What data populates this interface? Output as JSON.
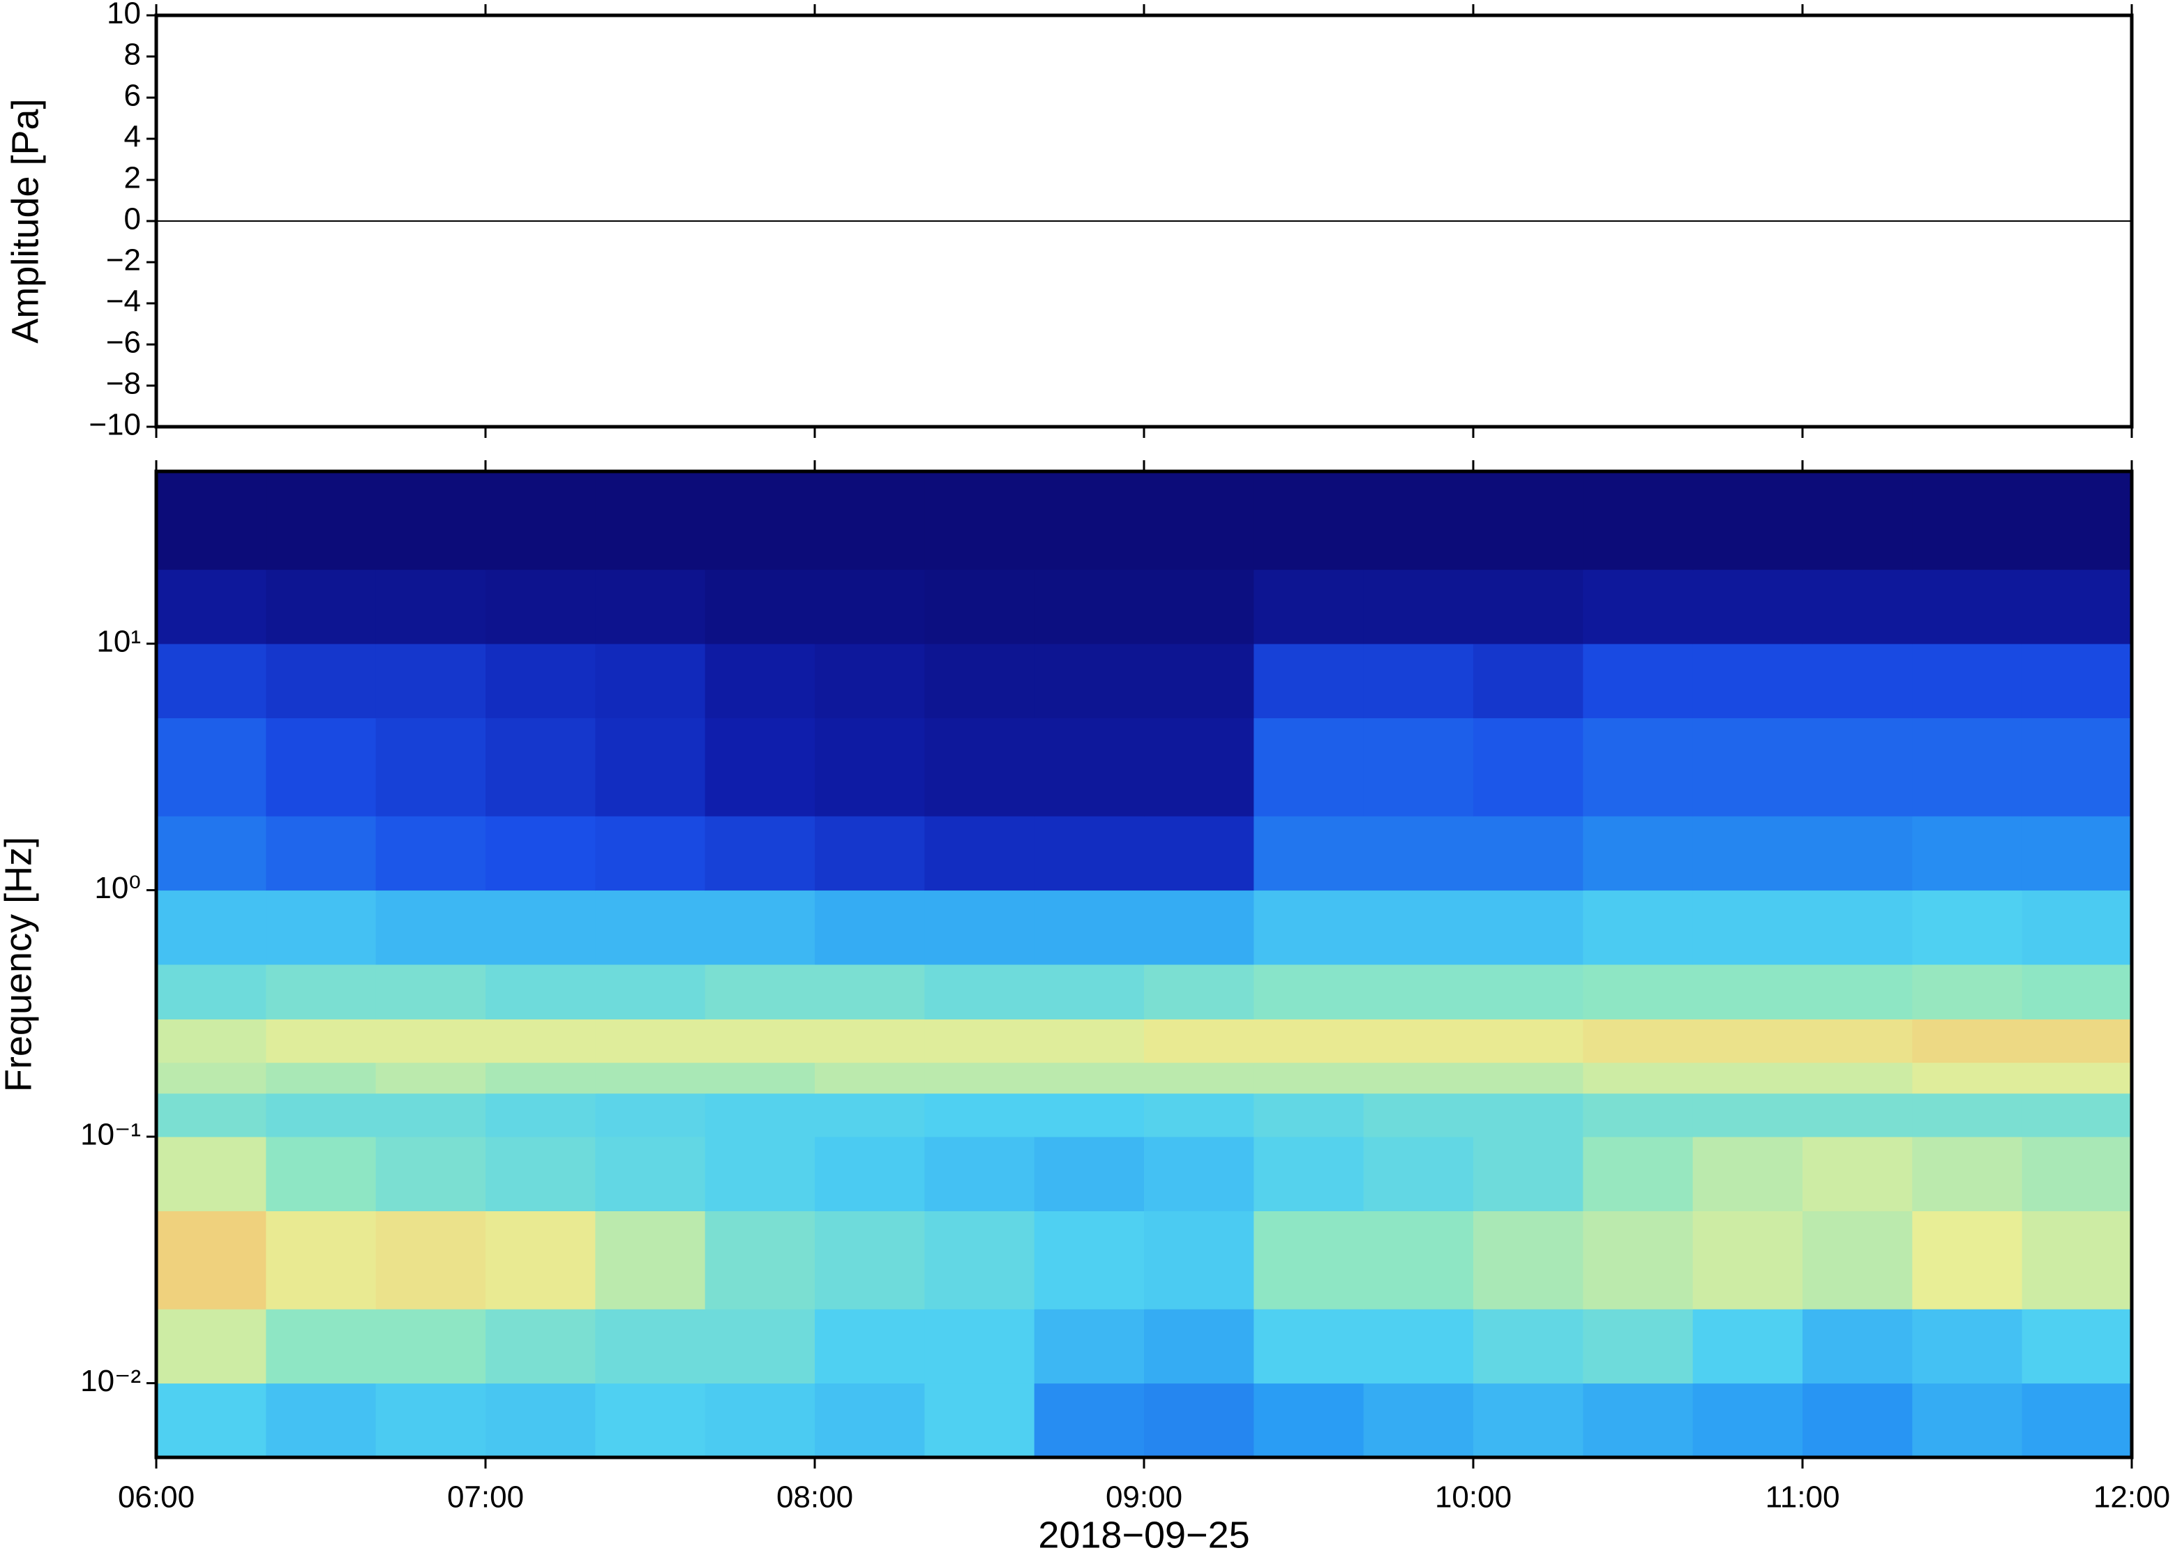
{
  "chart_data": [
    {
      "type": "line",
      "ylabel": "Amplitude [Pa]",
      "x": [
        360,
        420,
        480,
        540,
        600,
        660,
        720
      ],
      "series": [
        {
          "color": "#000000",
          "values": [
            0,
            0,
            0,
            0,
            0,
            0,
            0
          ]
        }
      ],
      "xlim": [
        360,
        720
      ],
      "xticks": [
        360,
        420,
        480,
        540,
        600,
        660,
        720
      ],
      "ylim": [
        -10,
        10
      ],
      "yticks": [
        {
          "value": -10,
          "label": "−10"
        },
        {
          "value": -8,
          "label": "−8"
        },
        {
          "value": -6,
          "label": "−6"
        },
        {
          "value": -4,
          "label": "−4"
        },
        {
          "value": -2,
          "label": "−2"
        },
        0,
        2,
        4,
        6,
        8,
        10
      ]
    },
    {
      "type": "heatmap",
      "ylabel": "Frequency [Hz]",
      "xlabel": "2018−09−25",
      "log_y": true,
      "xlim": [
        360,
        720
      ],
      "xticks": [
        {
          "value": 360,
          "label": "06:00"
        },
        {
          "value": 420,
          "label": "07:00"
        },
        {
          "value": 480,
          "label": "08:00"
        },
        {
          "value": 540,
          "label": "09:00"
        },
        {
          "value": 600,
          "label": "10:00"
        },
        {
          "value": 660,
          "label": "11:00"
        },
        {
          "value": 720,
          "label": "12:00"
        }
      ],
      "ylim": [
        0.005,
        50
      ],
      "yticks": [
        {
          "value": 0.01,
          "label": "10⁻²"
        },
        {
          "value": 0.1,
          "label": "10⁻¹"
        },
        {
          "value": 1,
          "label": "10⁰"
        },
        {
          "value": 10,
          "label": "10¹"
        }
      ],
      "x_bins": [
        360,
        380,
        400,
        420,
        440,
        460,
        480,
        500,
        520,
        540,
        560,
        580,
        600,
        620,
        640,
        660,
        680,
        700,
        720
      ],
      "y_bins": [
        0.005,
        0.01,
        0.02,
        0.05,
        0.1,
        0.15,
        0.2,
        0.3,
        0.5,
        1,
        2,
        5,
        10,
        20,
        50
      ],
      "colorscale": [
        [
          0,
          "#0b0970"
        ],
        [
          0.15,
          "#0f1fb0"
        ],
        [
          0.25,
          "#1a4fe8"
        ],
        [
          0.35,
          "#2a9df4"
        ],
        [
          0.45,
          "#4fd0f2"
        ],
        [
          0.55,
          "#8ee6c4"
        ],
        [
          0.65,
          "#e8ee96"
        ],
        [
          0.8,
          "#f8b060"
        ],
        [
          1,
          "#e04020"
        ]
      ],
      "z": [
        [
          0.45,
          0.42,
          0.44,
          0.43,
          0.45,
          0.44,
          0.42,
          0.45,
          0.33,
          0.32,
          0.35,
          0.38,
          0.4,
          0.38,
          0.36,
          0.34,
          0.38,
          0.36
        ],
        [
          0.62,
          0.55,
          0.55,
          0.52,
          0.5,
          0.5,
          0.45,
          0.45,
          0.4,
          0.38,
          0.45,
          0.45,
          0.48,
          0.5,
          0.45,
          0.4,
          0.42,
          0.45
        ],
        [
          0.72,
          0.66,
          0.68,
          0.66,
          0.6,
          0.52,
          0.5,
          0.48,
          0.45,
          0.44,
          0.55,
          0.55,
          0.58,
          0.6,
          0.62,
          0.6,
          0.65,
          0.62
        ],
        [
          0.62,
          0.55,
          0.52,
          0.5,
          0.48,
          0.46,
          0.44,
          0.42,
          0.4,
          0.42,
          0.46,
          0.48,
          0.5,
          0.56,
          0.6,
          0.62,
          0.6,
          0.58
        ],
        [
          0.52,
          0.5,
          0.5,
          0.48,
          0.47,
          0.46,
          0.46,
          0.45,
          0.45,
          0.46,
          0.48,
          0.5,
          0.5,
          0.52,
          0.52,
          0.52,
          0.52,
          0.52
        ],
        [
          0.6,
          0.58,
          0.6,
          0.58,
          0.58,
          0.58,
          0.6,
          0.6,
          0.6,
          0.6,
          0.6,
          0.6,
          0.6,
          0.62,
          0.62,
          0.62,
          0.64,
          0.64
        ],
        [
          0.62,
          0.64,
          0.64,
          0.64,
          0.64,
          0.64,
          0.64,
          0.64,
          0.64,
          0.66,
          0.66,
          0.66,
          0.66,
          0.68,
          0.68,
          0.68,
          0.7,
          0.7
        ],
        [
          0.5,
          0.52,
          0.52,
          0.5,
          0.5,
          0.52,
          0.52,
          0.5,
          0.5,
          0.52,
          0.54,
          0.54,
          0.54,
          0.55,
          0.55,
          0.55,
          0.56,
          0.55
        ],
        [
          0.42,
          0.42,
          0.4,
          0.4,
          0.4,
          0.4,
          0.38,
          0.38,
          0.38,
          0.38,
          0.42,
          0.42,
          0.42,
          0.44,
          0.44,
          0.44,
          0.45,
          0.44
        ],
        [
          0.3,
          0.28,
          0.26,
          0.25,
          0.24,
          0.22,
          0.2,
          0.18,
          0.18,
          0.18,
          0.3,
          0.3,
          0.3,
          0.32,
          0.32,
          0.32,
          0.33,
          0.33
        ],
        [
          0.27,
          0.24,
          0.22,
          0.2,
          0.18,
          0.14,
          0.12,
          0.1,
          0.1,
          0.1,
          0.27,
          0.27,
          0.26,
          0.28,
          0.28,
          0.28,
          0.28,
          0.28
        ],
        [
          0.22,
          0.2,
          0.2,
          0.18,
          0.17,
          0.12,
          0.1,
          0.08,
          0.08,
          0.08,
          0.22,
          0.22,
          0.2,
          0.24,
          0.24,
          0.24,
          0.24,
          0.24
        ],
        [
          0.1,
          0.08,
          0.08,
          0.07,
          0.07,
          0.05,
          0.05,
          0.04,
          0.04,
          0.04,
          0.08,
          0.08,
          0.08,
          0.1,
          0.1,
          0.1,
          0.1,
          0.1
        ],
        [
          0.02,
          0.02,
          0.02,
          0.02,
          0.02,
          0.02,
          0.02,
          0.02,
          0.02,
          0.02,
          0.02,
          0.02,
          0.02,
          0.02,
          0.02,
          0.02,
          0.02,
          0.02
        ]
      ]
    }
  ]
}
